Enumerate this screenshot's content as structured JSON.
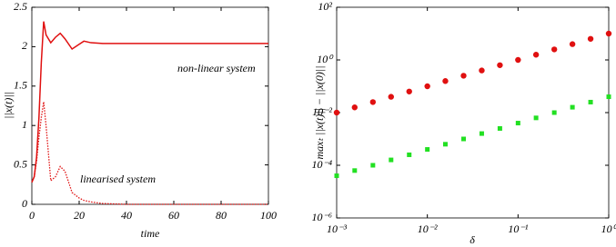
{
  "chart_data": [
    {
      "type": "line",
      "x": [
        0,
        1,
        2,
        3,
        4,
        5,
        6,
        8,
        10,
        12,
        14,
        17,
        20,
        22,
        25,
        30,
        40,
        60,
        80,
        100
      ],
      "series": [
        {
          "name": "non-linear system",
          "color": "#e01010",
          "line_style": "solid",
          "values": [
            0.28,
            0.35,
            0.6,
            1.1,
            1.8,
            2.32,
            2.15,
            2.05,
            2.12,
            2.17,
            2.1,
            1.97,
            2.03,
            2.07,
            2.05,
            2.04,
            2.04,
            2.04,
            2.04,
            2.04
          ]
        },
        {
          "name": "linearised system",
          "color": "#e01010",
          "line_style": "dotted",
          "values": [
            0.28,
            0.35,
            0.55,
            0.85,
            1.1,
            1.3,
            1.0,
            0.3,
            0.35,
            0.48,
            0.42,
            0.15,
            0.08,
            0.05,
            0.03,
            0.01,
            0,
            0,
            0,
            0
          ]
        }
      ],
      "x_label": "time",
      "y_label": "||x(t)||",
      "xlim": [
        0,
        100
      ],
      "xticks": [
        0,
        20,
        40,
        60,
        80,
        100
      ],
      "ylim": [
        0,
        2.5
      ],
      "yticks": [
        0,
        0.5,
        1,
        1.5,
        2,
        2.5
      ]
    },
    {
      "type": "scatter",
      "x_scale": "log",
      "y_scale": "log",
      "x": [
        0.001,
        0.00158,
        0.00251,
        0.00398,
        0.00631,
        0.01,
        0.0158,
        0.0251,
        0.0398,
        0.0631,
        0.1,
        0.158,
        0.251,
        0.398,
        0.631,
        1
      ],
      "series": [
        {
          "color": "#e01010",
          "marker": "circle",
          "values": [
            0.01,
            0.0158,
            0.0251,
            0.0398,
            0.0631,
            0.1,
            0.158,
            0.251,
            0.398,
            0.631,
            1,
            1.58,
            2.51,
            3.98,
            6.31,
            10
          ]
        },
        {
          "color": "#22e022",
          "marker": "square",
          "values": [
            4e-05,
            6.3e-05,
            0.0001,
            0.00016,
            0.00025,
            0.0004,
            0.00063,
            0.001,
            0.0016,
            0.0025,
            0.004,
            0.0063,
            0.01,
            0.016,
            0.025,
            0.04
          ]
        }
      ],
      "x_label": "δ",
      "y_label": "maxₜ ||x(t)|| − ||x(0)||",
      "xlim": [
        0.001,
        1
      ],
      "xticks": [
        {
          "value": 0.001,
          "label": "10⁻³"
        },
        {
          "value": 0.01,
          "label": "10⁻²"
        },
        {
          "value": 0.1,
          "label": "10⁻¹"
        },
        {
          "value": 1,
          "label": "10⁰"
        }
      ],
      "ylim": [
        1e-06,
        100
      ],
      "yticks": [
        {
          "value": 1e-06,
          "label": "10⁻⁶"
        },
        {
          "value": 0.0001,
          "label": "10⁻⁴"
        },
        {
          "value": 0.01,
          "label": "10⁻²"
        },
        {
          "value": 1,
          "label": "10⁰"
        },
        {
          "value": 100,
          "label": "10²"
        }
      ]
    }
  ]
}
